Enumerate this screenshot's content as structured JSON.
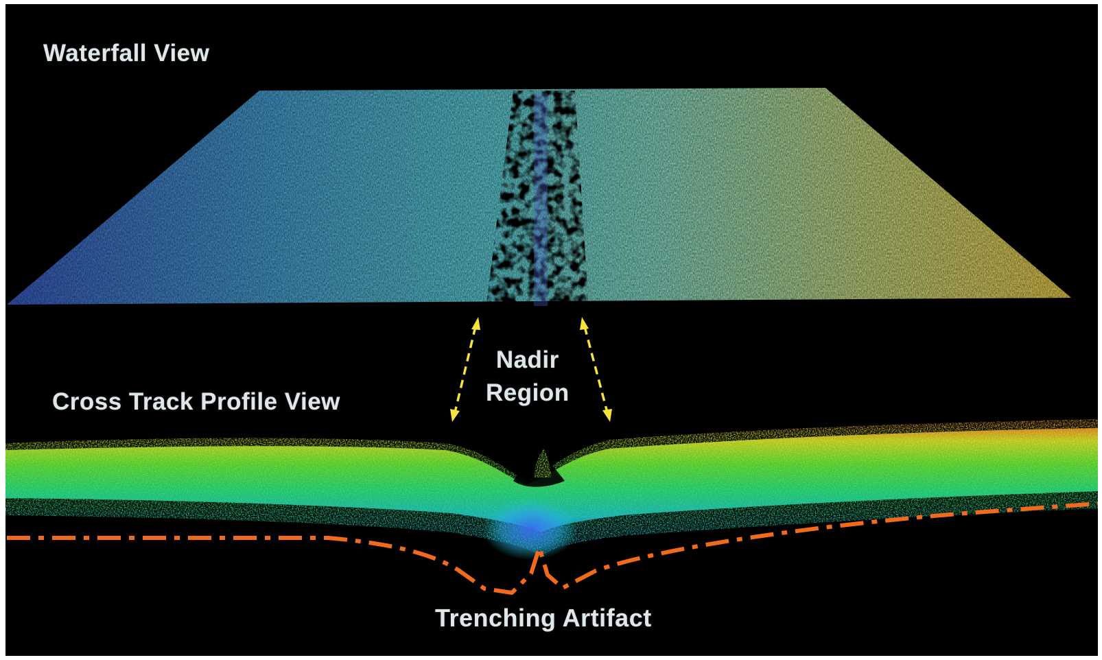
{
  "labels": {
    "waterfall_view": "Waterfall View",
    "cross_track_profile_view": "Cross Track Profile View",
    "nadir_line1": "Nadir",
    "nadir_line2": "Region",
    "trenching_artifact": "Trenching Artifact"
  },
  "colors": {
    "background": "#000000",
    "label_text": "#dfe7ea",
    "nadir_arrows": "#f5e23a",
    "trench_line": "#f26a1b",
    "swath_left": "#3f6fd0",
    "swath_center": "#5fd0d8",
    "swath_right": "#e8d65a"
  }
}
